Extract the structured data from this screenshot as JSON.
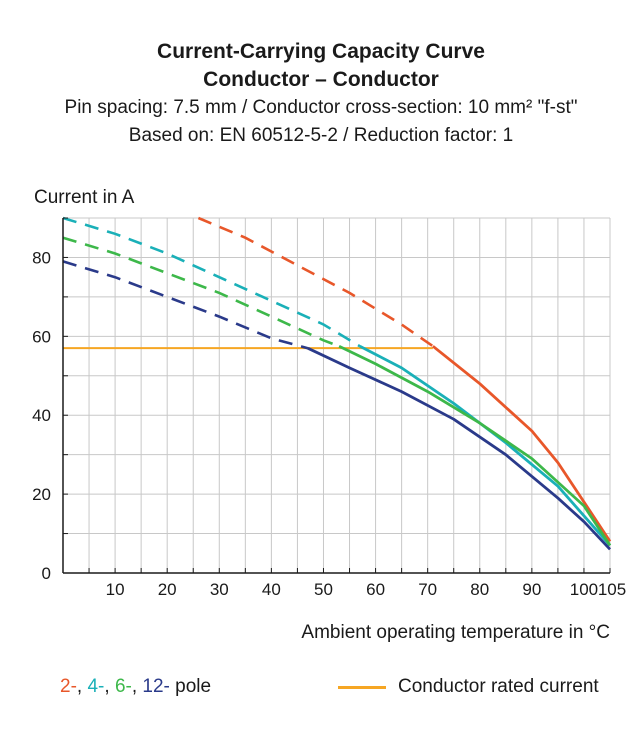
{
  "chart_data": {
    "type": "line",
    "title": "Current-Carrying Capacity Curve",
    "subtitle": "Conductor – Conductor",
    "info_lines": [
      "Pin spacing: 7.5 mm / Conductor cross-section: 10 mm² \"f-st\"",
      "Based on: EN 60512-5-2 / Reduction factor: 1"
    ],
    "ylabel": "Current in A",
    "xlabel": "Ambient operating temperature in °C",
    "xlim": [
      0,
      105
    ],
    "ylim": [
      0,
      90
    ],
    "xticks": [
      10,
      20,
      30,
      40,
      50,
      60,
      70,
      80,
      90,
      100,
      105
    ],
    "yticks": [
      0,
      20,
      40,
      60,
      80
    ],
    "grid": true,
    "rated_current": {
      "label": "Conductor rated current",
      "value": 57,
      "x": [
        0,
        71
      ],
      "color": "#f6a623"
    },
    "series": [
      {
        "name": "2-",
        "color": "#e8572a",
        "dashed": [
          [
            26,
            90
          ],
          [
            35,
            85
          ],
          [
            45,
            78
          ],
          [
            55,
            71
          ],
          [
            65,
            63
          ],
          [
            71,
            57.5
          ]
        ],
        "solid": [
          [
            71,
            57.5
          ],
          [
            80,
            48
          ],
          [
            90,
            36
          ],
          [
            95,
            28
          ],
          [
            100,
            18
          ],
          [
            105,
            8
          ]
        ]
      },
      {
        "name": "4-",
        "color": "#1ab0b8",
        "dashed": [
          [
            0,
            90
          ],
          [
            10,
            86
          ],
          [
            20,
            81
          ],
          [
            30,
            75
          ],
          [
            40,
            69
          ],
          [
            50,
            63
          ],
          [
            57,
            57.5
          ]
        ],
        "solid": [
          [
            57,
            57.5
          ],
          [
            65,
            52
          ],
          [
            75,
            43
          ],
          [
            85,
            33
          ],
          [
            95,
            22
          ],
          [
            105,
            7
          ]
        ]
      },
      {
        "name": "6-",
        "color": "#3db84a",
        "dashed": [
          [
            0,
            85
          ],
          [
            10,
            81
          ],
          [
            20,
            76
          ],
          [
            30,
            71
          ],
          [
            40,
            65
          ],
          [
            50,
            59
          ],
          [
            53,
            57.5
          ]
        ],
        "solid": [
          [
            53,
            57.5
          ],
          [
            60,
            53
          ],
          [
            70,
            46
          ],
          [
            80,
            38
          ],
          [
            90,
            29
          ],
          [
            100,
            17
          ],
          [
            105,
            7
          ]
        ]
      },
      {
        "name": "12-",
        "color": "#2a3a8a",
        "dashed": [
          [
            0,
            79
          ],
          [
            10,
            75
          ],
          [
            20,
            70
          ],
          [
            30,
            65
          ],
          [
            40,
            59.5
          ],
          [
            47,
            57
          ]
        ],
        "solid": [
          [
            47,
            57
          ],
          [
            55,
            52
          ],
          [
            65,
            46
          ],
          [
            75,
            39
          ],
          [
            85,
            30
          ],
          [
            95,
            19
          ],
          [
            100,
            13
          ],
          [
            105,
            6
          ]
        ]
      }
    ],
    "legend": {
      "poles_suffix": "pole",
      "placement": "bottom"
    }
  }
}
